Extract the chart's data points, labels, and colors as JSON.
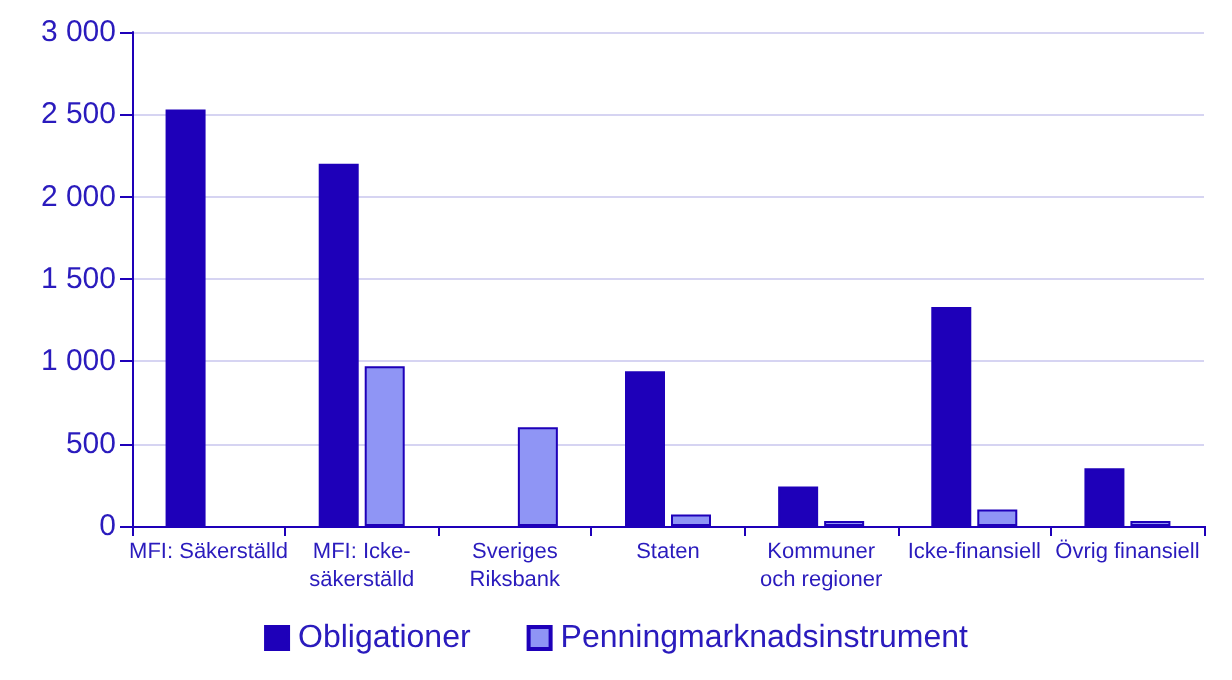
{
  "chart_data": {
    "type": "bar",
    "categories": [
      "MFI: Säkerställd",
      "MFI: Icke-\nsäkerställd",
      "Sveriges\nRiksbank",
      "Staten",
      "Kommuner\noch regioner",
      "Icke-finansiell",
      "Övrig finansiell"
    ],
    "series": [
      {
        "name": "Obligationer",
        "color": "#1e00b9",
        "values": [
          2530,
          2200,
          null,
          940,
          240,
          1330,
          350
        ]
      },
      {
        "name": "Penningmarknadsinstrument",
        "color": "#8f95f5",
        "values": [
          null,
          970,
          600,
          70,
          30,
          100,
          30
        ]
      }
    ],
    "ylim": [
      0,
      3000
    ],
    "yticks": [
      {
        "value": 0,
        "label": "0"
      },
      {
        "value": 500,
        "label": "500"
      },
      {
        "value": 1000,
        "label": "1 000"
      },
      {
        "value": 1500,
        "label": "1 500"
      },
      {
        "value": 2000,
        "label": "2 000"
      },
      {
        "value": 2500,
        "label": "2 500"
      },
      {
        "value": 3000,
        "label": "3 000"
      }
    ],
    "grid": "y",
    "legend": "bottom"
  }
}
